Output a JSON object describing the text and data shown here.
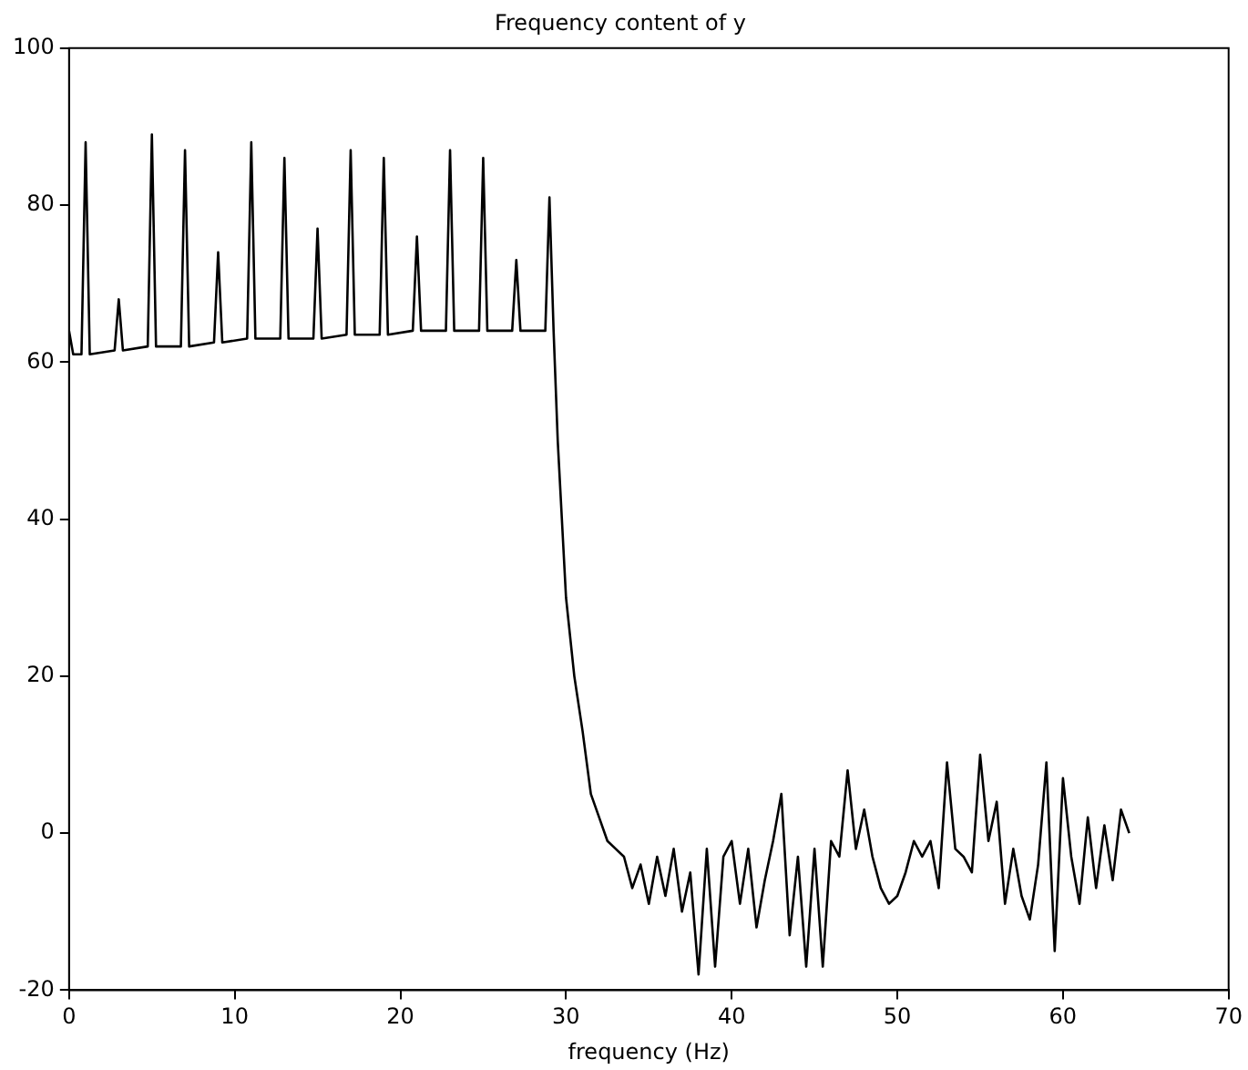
{
  "chart_data": {
    "type": "line",
    "title": "Frequency content of y",
    "xlabel": "frequency (Hz)",
    "xlim": [
      0,
      70
    ],
    "xticks": [
      0,
      10,
      20,
      30,
      40,
      50,
      60,
      70
    ],
    "ylim": [
      -20,
      100
    ],
    "yticks": [
      -20,
      0,
      20,
      40,
      60,
      80,
      100
    ],
    "grid": false,
    "legend": false,
    "marker": "none",
    "line_style": "solid",
    "series": [
      {
        "color": "#000000",
        "x": [
          0,
          0.25,
          0.75,
          1,
          1.25,
          2.75,
          3,
          3.25,
          4.75,
          5,
          5.25,
          6.75,
          7,
          7.25,
          8.75,
          9,
          9.25,
          10.75,
          11,
          11.25,
          12.75,
          13,
          13.25,
          14.75,
          15,
          15.25,
          16.75,
          17,
          17.25,
          18.75,
          19,
          19.25,
          20.75,
          21,
          21.25,
          22.75,
          23,
          23.25,
          24.75,
          25,
          25.25,
          26.75,
          27,
          27.25,
          28.75,
          29,
          29.25,
          29.5,
          30,
          30.5,
          31,
          31.5,
          32,
          32.5,
          33,
          33.5,
          34,
          34.5,
          35,
          35.5,
          36,
          36.5,
          37,
          37.5,
          38,
          38.5,
          39,
          39.5,
          40,
          40.5,
          41,
          41.5,
          42,
          42.5,
          43,
          43.5,
          44,
          44.5,
          45,
          45.5,
          46,
          46.5,
          47,
          47.5,
          48,
          48.5,
          49,
          49.5,
          50,
          50.5,
          51,
          51.5,
          52,
          52.5,
          53,
          53.5,
          54,
          54.5,
          55,
          55.5,
          56,
          56.5,
          57,
          57.5,
          58,
          58.5,
          59,
          59.5,
          60,
          60.5,
          61,
          61.5,
          62,
          62.5,
          63,
          63.5,
          64
        ],
        "values": [
          64,
          61,
          61,
          88,
          61,
          61.5,
          68,
          61.5,
          62,
          89,
          62,
          62,
          87,
          62,
          62.5,
          74,
          62.5,
          63,
          88,
          63,
          63,
          86,
          63,
          63,
          77,
          63,
          63.5,
          87,
          63.5,
          63.5,
          86,
          63.5,
          64,
          76,
          64,
          64,
          87,
          64,
          64,
          86,
          64,
          64,
          73,
          64,
          64,
          81,
          64,
          50,
          30,
          20,
          13,
          5,
          2,
          -1,
          -2,
          -3,
          -7,
          -4,
          -9,
          -3,
          -8,
          -2,
          -10,
          -5,
          -18,
          -2,
          -17,
          -3,
          -1,
          -9,
          -2,
          -12,
          -6,
          -1,
          5,
          -13,
          -3,
          -17,
          -2,
          -17,
          -1,
          -3,
          8,
          -2,
          3,
          -3,
          -7,
          -9,
          -8,
          -5,
          -1,
          -3,
          -1,
          -7,
          9,
          -2,
          -3,
          -5,
          10,
          -1,
          4,
          -9,
          -2,
          -8,
          -11,
          -4,
          9,
          -15,
          7,
          -3,
          -9,
          2,
          -7,
          1,
          -6,
          3,
          0
        ]
      }
    ]
  }
}
